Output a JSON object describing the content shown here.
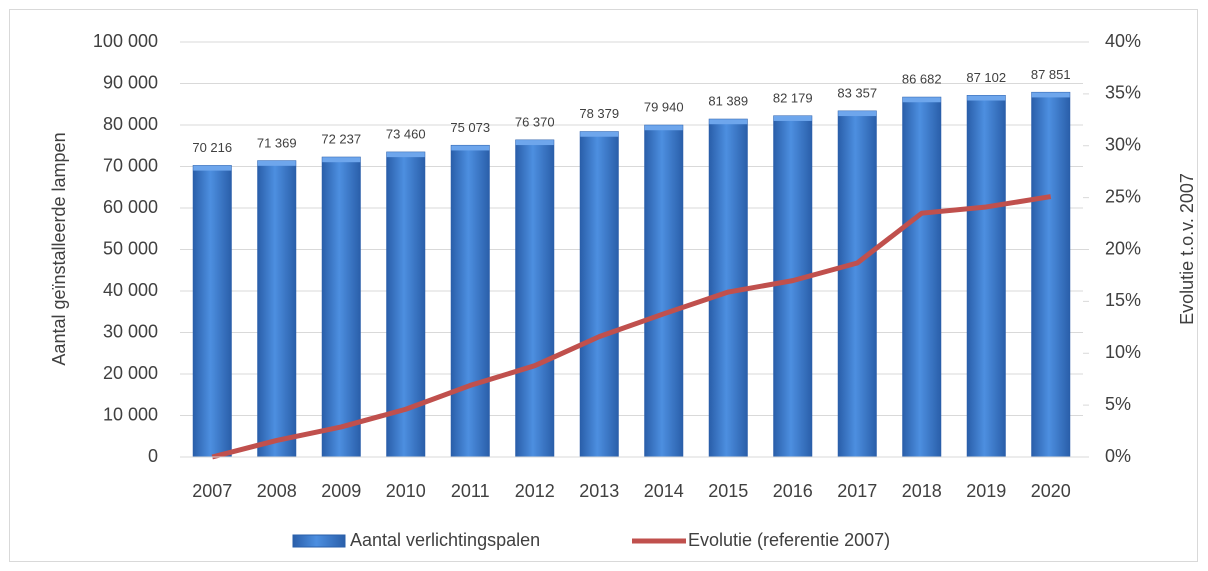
{
  "chart_data": {
    "type": "bar",
    "categories": [
      "2007",
      "2008",
      "2009",
      "2010",
      "2011",
      "2012",
      "2013",
      "2014",
      "2015",
      "2016",
      "2017",
      "2018",
      "2019",
      "2020"
    ],
    "ylabel": "Aantal geïnstalleerde lampen",
    "y2label": "Evolutie t.o.v. 2007",
    "series": [
      {
        "name": "Aantal verlichtingspalen",
        "type": "bar",
        "color": "#3a78c9",
        "values": [
          70216,
          71369,
          72237,
          73460,
          75073,
          76370,
          78379,
          79940,
          81389,
          82179,
          83357,
          86682,
          87102,
          87851
        ],
        "value_labels": [
          "70 216",
          "71 369",
          "72 237",
          "73 460",
          "75 073",
          "76 370",
          "78 379",
          "79 940",
          "81 389",
          "82 179",
          "83 357",
          "86 682",
          "87 102",
          "87 851"
        ]
      },
      {
        "name": "Evolutie (referentie 2007)",
        "type": "line",
        "axis": "y2",
        "color": "#c0504d",
        "values": [
          0,
          1.6,
          2.9,
          4.6,
          6.9,
          8.8,
          11.6,
          13.8,
          15.9,
          17.0,
          18.7,
          23.5,
          24.1,
          25.1
        ]
      }
    ],
    "ylim": [
      0,
      100000
    ],
    "yticks": [
      0,
      {
        "value": 10000,
        "label": "10 000"
      },
      {
        "value": 20000,
        "label": "20 000"
      },
      {
        "value": 30000,
        "label": "30 000"
      },
      {
        "value": 40000,
        "label": "40 000"
      },
      {
        "value": 50000,
        "label": "50 000"
      },
      {
        "value": 60000,
        "label": "60 000"
      },
      {
        "value": 70000,
        "label": "70 000"
      },
      {
        "value": 80000,
        "label": "80 000"
      },
      {
        "value": 90000,
        "label": "90 000"
      },
      {
        "value": 100000,
        "label": "100 000"
      }
    ],
    "y2lim": [
      0,
      40
    ],
    "y2ticks": [
      {
        "value": 0,
        "label": "0%"
      },
      {
        "value": 5,
        "label": "5%"
      },
      {
        "value": 10,
        "label": "10%"
      },
      {
        "value": 15,
        "label": "15%"
      },
      {
        "value": 20,
        "label": "20%"
      },
      {
        "value": 25,
        "label": "25%"
      },
      {
        "value": 30,
        "label": "30%"
      },
      {
        "value": 35,
        "label": "35%"
      },
      {
        "value": 40,
        "label": "40%"
      }
    ],
    "grid": true,
    "legend": "bottom"
  }
}
